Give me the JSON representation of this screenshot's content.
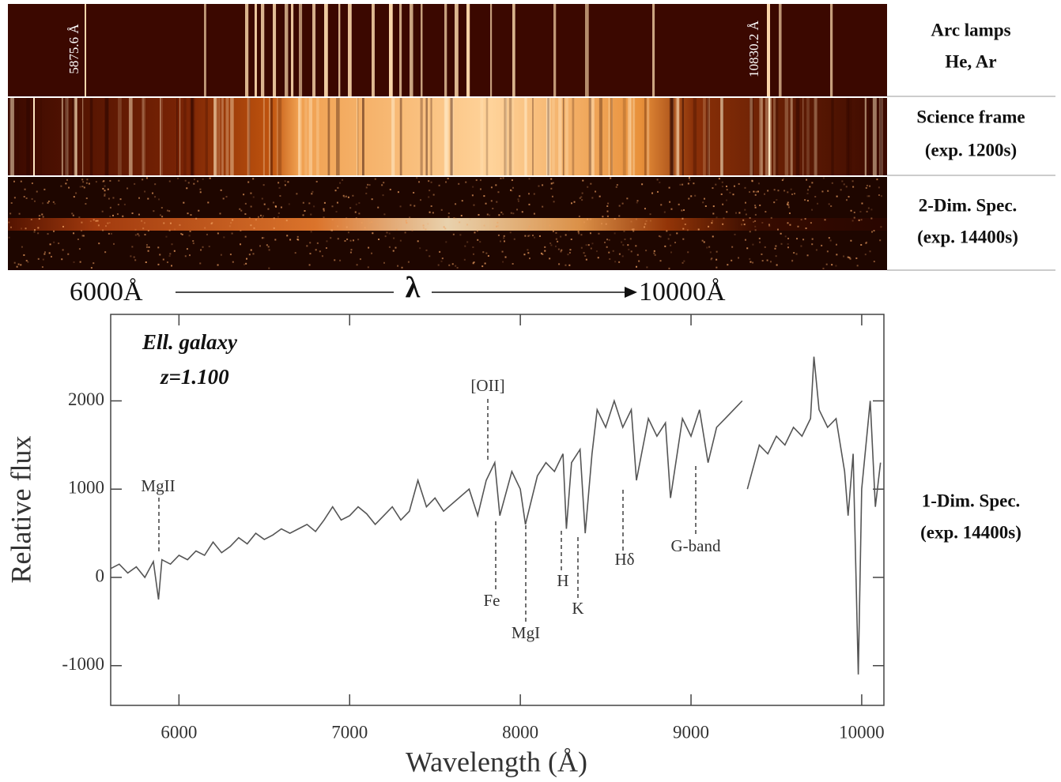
{
  "panels": [
    {
      "lines": [
        "Arc lamps",
        "He, Ar"
      ]
    },
    {
      "lines": [
        "Science frame",
        "(exp. 1200s)"
      ]
    },
    {
      "lines": [
        "2-Dim. Spec.",
        "(exp. 14400s)"
      ]
    }
  ],
  "arc_marks": [
    "5875.6 Å",
    "10830.2 Å"
  ],
  "wavelength_arrow": {
    "start": "6000Å",
    "symbol": "λ",
    "end": "10000Å"
  },
  "chart_data": {
    "type": "line",
    "x_label": "Wavelength (Å)",
    "y_label": "Relative flux",
    "annotations": [
      "Ell. galaxy",
      "z=1.100"
    ],
    "line_labels": [
      "MgII",
      "[OII]",
      "Fe",
      "MgI",
      "H",
      "K",
      "Hδ",
      "G-band"
    ],
    "side_label": [
      "1-Dim. Spec.",
      "(exp. 14400s)"
    ],
    "x": [
      5600,
      5650,
      5700,
      5750,
      5800,
      5850,
      5880,
      5900,
      5950,
      6000,
      6050,
      6100,
      6150,
      6200,
      6250,
      6300,
      6350,
      6400,
      6450,
      6500,
      6550,
      6600,
      6650,
      6700,
      6750,
      6800,
      6850,
      6900,
      6950,
      7000,
      7050,
      7100,
      7150,
      7200,
      7250,
      7300,
      7350,
      7400,
      7450,
      7500,
      7550,
      7700,
      7750,
      7800,
      7850,
      7880,
      7950,
      8000,
      8030,
      8100,
      8150,
      8200,
      8250,
      8270,
      8300,
      8350,
      8380,
      8420,
      8450,
      8500,
      8550,
      8600,
      8650,
      8680,
      8750,
      8800,
      8850,
      8880,
      8950,
      9000,
      9050,
      9100,
      9150,
      9200,
      9250,
      9300,
      9320,
      9330,
      9400,
      9450,
      9500,
      9550,
      9600,
      9650,
      9700,
      9720,
      9750,
      9800,
      9850,
      9900,
      9920,
      9950,
      9980,
      10000,
      10050,
      10080,
      10110
    ],
    "series": [
      {
        "name": "1-Dim. Spec.",
        "color": "#555555",
        "values": [
          100,
          150,
          50,
          120,
          0,
          180,
          -250,
          200,
          150,
          250,
          200,
          300,
          250,
          400,
          280,
          350,
          450,
          380,
          500,
          430,
          480,
          550,
          500,
          550,
          600,
          520,
          650,
          800,
          650,
          700,
          800,
          720,
          600,
          700,
          800,
          650,
          750,
          1100,
          800,
          900,
          750,
          1000,
          700,
          1100,
          1300,
          700,
          1200,
          1000,
          600,
          1150,
          1300,
          1200,
          1400,
          550,
          1300,
          1450,
          500,
          1400,
          1900,
          1700,
          2000,
          1700,
          1900,
          1100,
          1800,
          1600,
          1750,
          900,
          1800,
          1600,
          1900,
          1300,
          1700,
          1800,
          1900,
          2000,
          null,
          1000,
          1500,
          1400,
          1600,
          1500,
          1700,
          1600,
          1800,
          2500,
          1900,
          1700,
          1800,
          1200,
          700,
          1400,
          -1100,
          1000,
          2000,
          800,
          1300
        ]
      }
    ],
    "xlim": [
      5600,
      10130
    ],
    "ylim": [
      -1450,
      2980
    ],
    "xticks": [
      6000,
      7000,
      8000,
      9000,
      10000
    ],
    "yticks": [
      -1000,
      0,
      1000,
      2000
    ]
  }
}
